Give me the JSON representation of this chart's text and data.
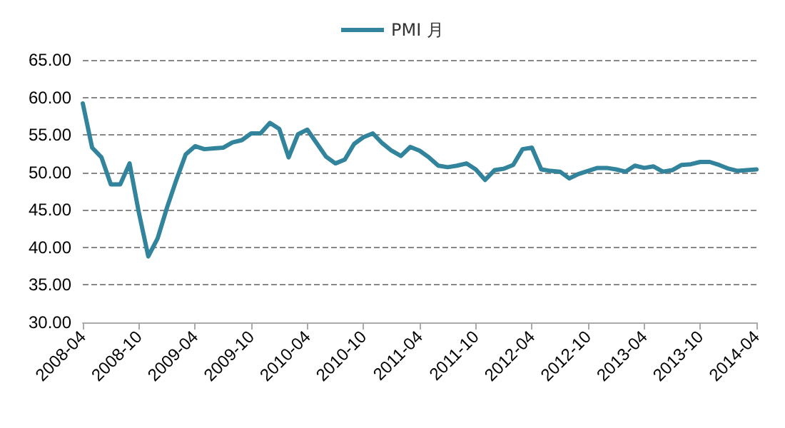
{
  "chart_data": {
    "type": "line",
    "categories": [
      "2008-04",
      null,
      null,
      null,
      null,
      null,
      "2008-10",
      null,
      null,
      null,
      null,
      null,
      "2009-04",
      null,
      null,
      null,
      null,
      null,
      "2009-10",
      null,
      null,
      null,
      null,
      null,
      "2010-04",
      null,
      null,
      null,
      null,
      null,
      "2010-10",
      null,
      null,
      null,
      null,
      null,
      "2011-04",
      null,
      null,
      null,
      null,
      null,
      "2011-10",
      null,
      null,
      null,
      null,
      null,
      "2012-04",
      null,
      null,
      null,
      null,
      null,
      "2012-10",
      null,
      null,
      null,
      null,
      null,
      "2013-04",
      null,
      null,
      null,
      null,
      null,
      "2013-10",
      null,
      null,
      null,
      null,
      null,
      "2014-04"
    ],
    "series": [
      {
        "name": "PMI 月",
        "color": "#31849b",
        "values": [
          59.2,
          53.3,
          52.0,
          48.4,
          48.4,
          51.2,
          44.6,
          38.8,
          41.2,
          45.3,
          49.0,
          52.4,
          53.5,
          53.1,
          53.2,
          53.3,
          54.0,
          54.3,
          55.2,
          55.2,
          56.6,
          55.8,
          52.0,
          55.1,
          55.7,
          53.9,
          52.1,
          51.2,
          51.7,
          53.8,
          54.7,
          55.2,
          53.9,
          52.9,
          52.2,
          53.4,
          52.9,
          52.0,
          50.9,
          50.7,
          50.9,
          51.2,
          50.4,
          49.0,
          50.3,
          50.5,
          51.0,
          53.1,
          53.3,
          50.4,
          50.2,
          50.1,
          49.2,
          49.8,
          50.2,
          50.6,
          50.6,
          50.4,
          50.1,
          50.9,
          50.6,
          50.8,
          50.1,
          50.3,
          51.0,
          51.1,
          51.4,
          51.4,
          51.0,
          50.5,
          50.2,
          50.3,
          50.4
        ]
      }
    ],
    "ylim": [
      30,
      65
    ],
    "yticks": [
      {
        "value": 30,
        "label": "30.00"
      },
      {
        "value": 35,
        "label": "35.00"
      },
      {
        "value": 40,
        "label": "40.00"
      },
      {
        "value": 45,
        "label": "45.00"
      },
      {
        "value": 50,
        "label": "50.00"
      },
      {
        "value": 55,
        "label": "55.00"
      },
      {
        "value": 60,
        "label": "60.00"
      },
      {
        "value": 65,
        "label": "65.00"
      }
    ],
    "grid": "y",
    "legend": "top",
    "marker": "none",
    "line_style": "solid"
  }
}
